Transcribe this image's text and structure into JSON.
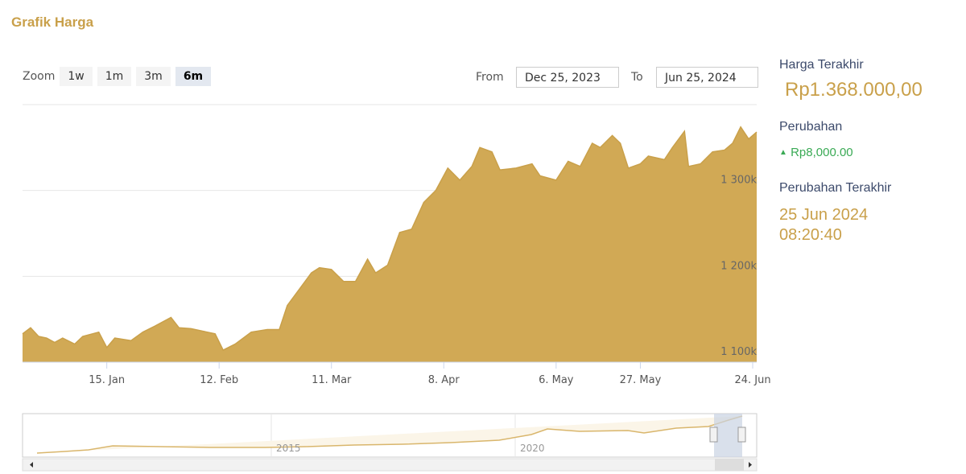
{
  "header": {
    "title": "Grafik Harga"
  },
  "controls": {
    "zoom_label": "Zoom",
    "zoom_buttons": [
      "1w",
      "1m",
      "3m",
      "6m"
    ],
    "from_label": "From",
    "from_date": "Dec 25, 2023",
    "to_label": "To",
    "to_date": "Jun 25, 2024"
  },
  "chart_data": {
    "type": "area",
    "color": "#d1a955",
    "line_color": "#c9a04a",
    "grid": true,
    "x": [
      "2023-12-25",
      "2023-12-27",
      "2023-12-29",
      "2023-12-31",
      "2024-01-02",
      "2024-01-04",
      "2024-01-07",
      "2024-01-09",
      "2024-01-13",
      "2024-01-15",
      "2024-01-17",
      "2024-01-21",
      "2024-01-24",
      "2024-01-27",
      "2024-01-31",
      "2024-02-02",
      "2024-02-05",
      "2024-02-08",
      "2024-02-11",
      "2024-02-13",
      "2024-02-16",
      "2024-02-20",
      "2024-02-24",
      "2024-02-27",
      "2024-02-29",
      "2024-03-03",
      "2024-03-06",
      "2024-03-08",
      "2024-03-11",
      "2024-03-14",
      "2024-03-17",
      "2024-03-20",
      "2024-03-22",
      "2024-03-25",
      "2024-03-28",
      "2024-03-31",
      "2024-04-03",
      "2024-04-06",
      "2024-04-09",
      "2024-04-12",
      "2024-04-15",
      "2024-04-17",
      "2024-04-20",
      "2024-04-22",
      "2024-04-26",
      "2024-04-30",
      "2024-05-02",
      "2024-05-06",
      "2024-05-09",
      "2024-05-12",
      "2024-05-15",
      "2024-05-17",
      "2024-05-20",
      "2024-05-22",
      "2024-05-24",
      "2024-05-27",
      "2024-05-29",
      "2024-06-02",
      "2024-06-04",
      "2024-06-07",
      "2024-06-08",
      "2024-06-11",
      "2024-06-14",
      "2024-06-17",
      "2024-06-19",
      "2024-06-21",
      "2024-06-23",
      "2024-06-25"
    ],
    "values": [
      1133000,
      1140000,
      1130000,
      1128000,
      1123000,
      1128000,
      1121000,
      1130000,
      1135000,
      1117000,
      1128000,
      1125000,
      1135000,
      1142000,
      1152000,
      1140000,
      1139000,
      1136000,
      1133000,
      1114000,
      1121000,
      1135000,
      1138000,
      1138000,
      1166000,
      1185000,
      1204000,
      1210000,
      1208000,
      1194000,
      1194000,
      1220000,
      1204000,
      1213000,
      1251000,
      1255000,
      1286000,
      1300000,
      1326000,
      1312000,
      1328000,
      1350000,
      1345000,
      1324000,
      1326000,
      1331000,
      1317000,
      1312000,
      1334000,
      1328000,
      1355000,
      1350000,
      1364000,
      1355000,
      1326000,
      1331000,
      1340000,
      1336000,
      1350000,
      1369000,
      1328000,
      1331000,
      1345000,
      1347000,
      1355000,
      1374000,
      1360000,
      1368000
    ],
    "xlim": [
      "2023-12-25",
      "2024-06-25"
    ],
    "xticks": [
      {
        "value": "2024-01-15",
        "label": "15. Jan"
      },
      {
        "value": "2024-02-12",
        "label": "12. Feb"
      },
      {
        "value": "2024-03-11",
        "label": "11. Mar"
      },
      {
        "value": "2024-04-08",
        "label": "8. Apr"
      },
      {
        "value": "2024-05-06",
        "label": "6. May"
      },
      {
        "value": "2024-05-27",
        "label": "27. May"
      },
      {
        "value": "2024-06-24",
        "label": "24. Jun"
      }
    ],
    "ylim": [
      1100000,
      1400000
    ],
    "yticks": [
      {
        "value": 1100000,
        "label": "1 100k"
      },
      {
        "value": 1200000,
        "label": "1 200k"
      },
      {
        "value": 1300000,
        "label": "1 300k"
      }
    ]
  },
  "navigator": {
    "labels": [
      "2015",
      "2020"
    ]
  },
  "sidebar": {
    "last_price_label": "Harga Terakhir",
    "last_price": "Rp1.368.000,00",
    "change_label": "Perubahan",
    "change": "Rp8,000.00",
    "last_update_label": "Perubahan Terakhir",
    "last_update_date": "25 Jun 2024",
    "last_update_time": "08:20:40"
  }
}
